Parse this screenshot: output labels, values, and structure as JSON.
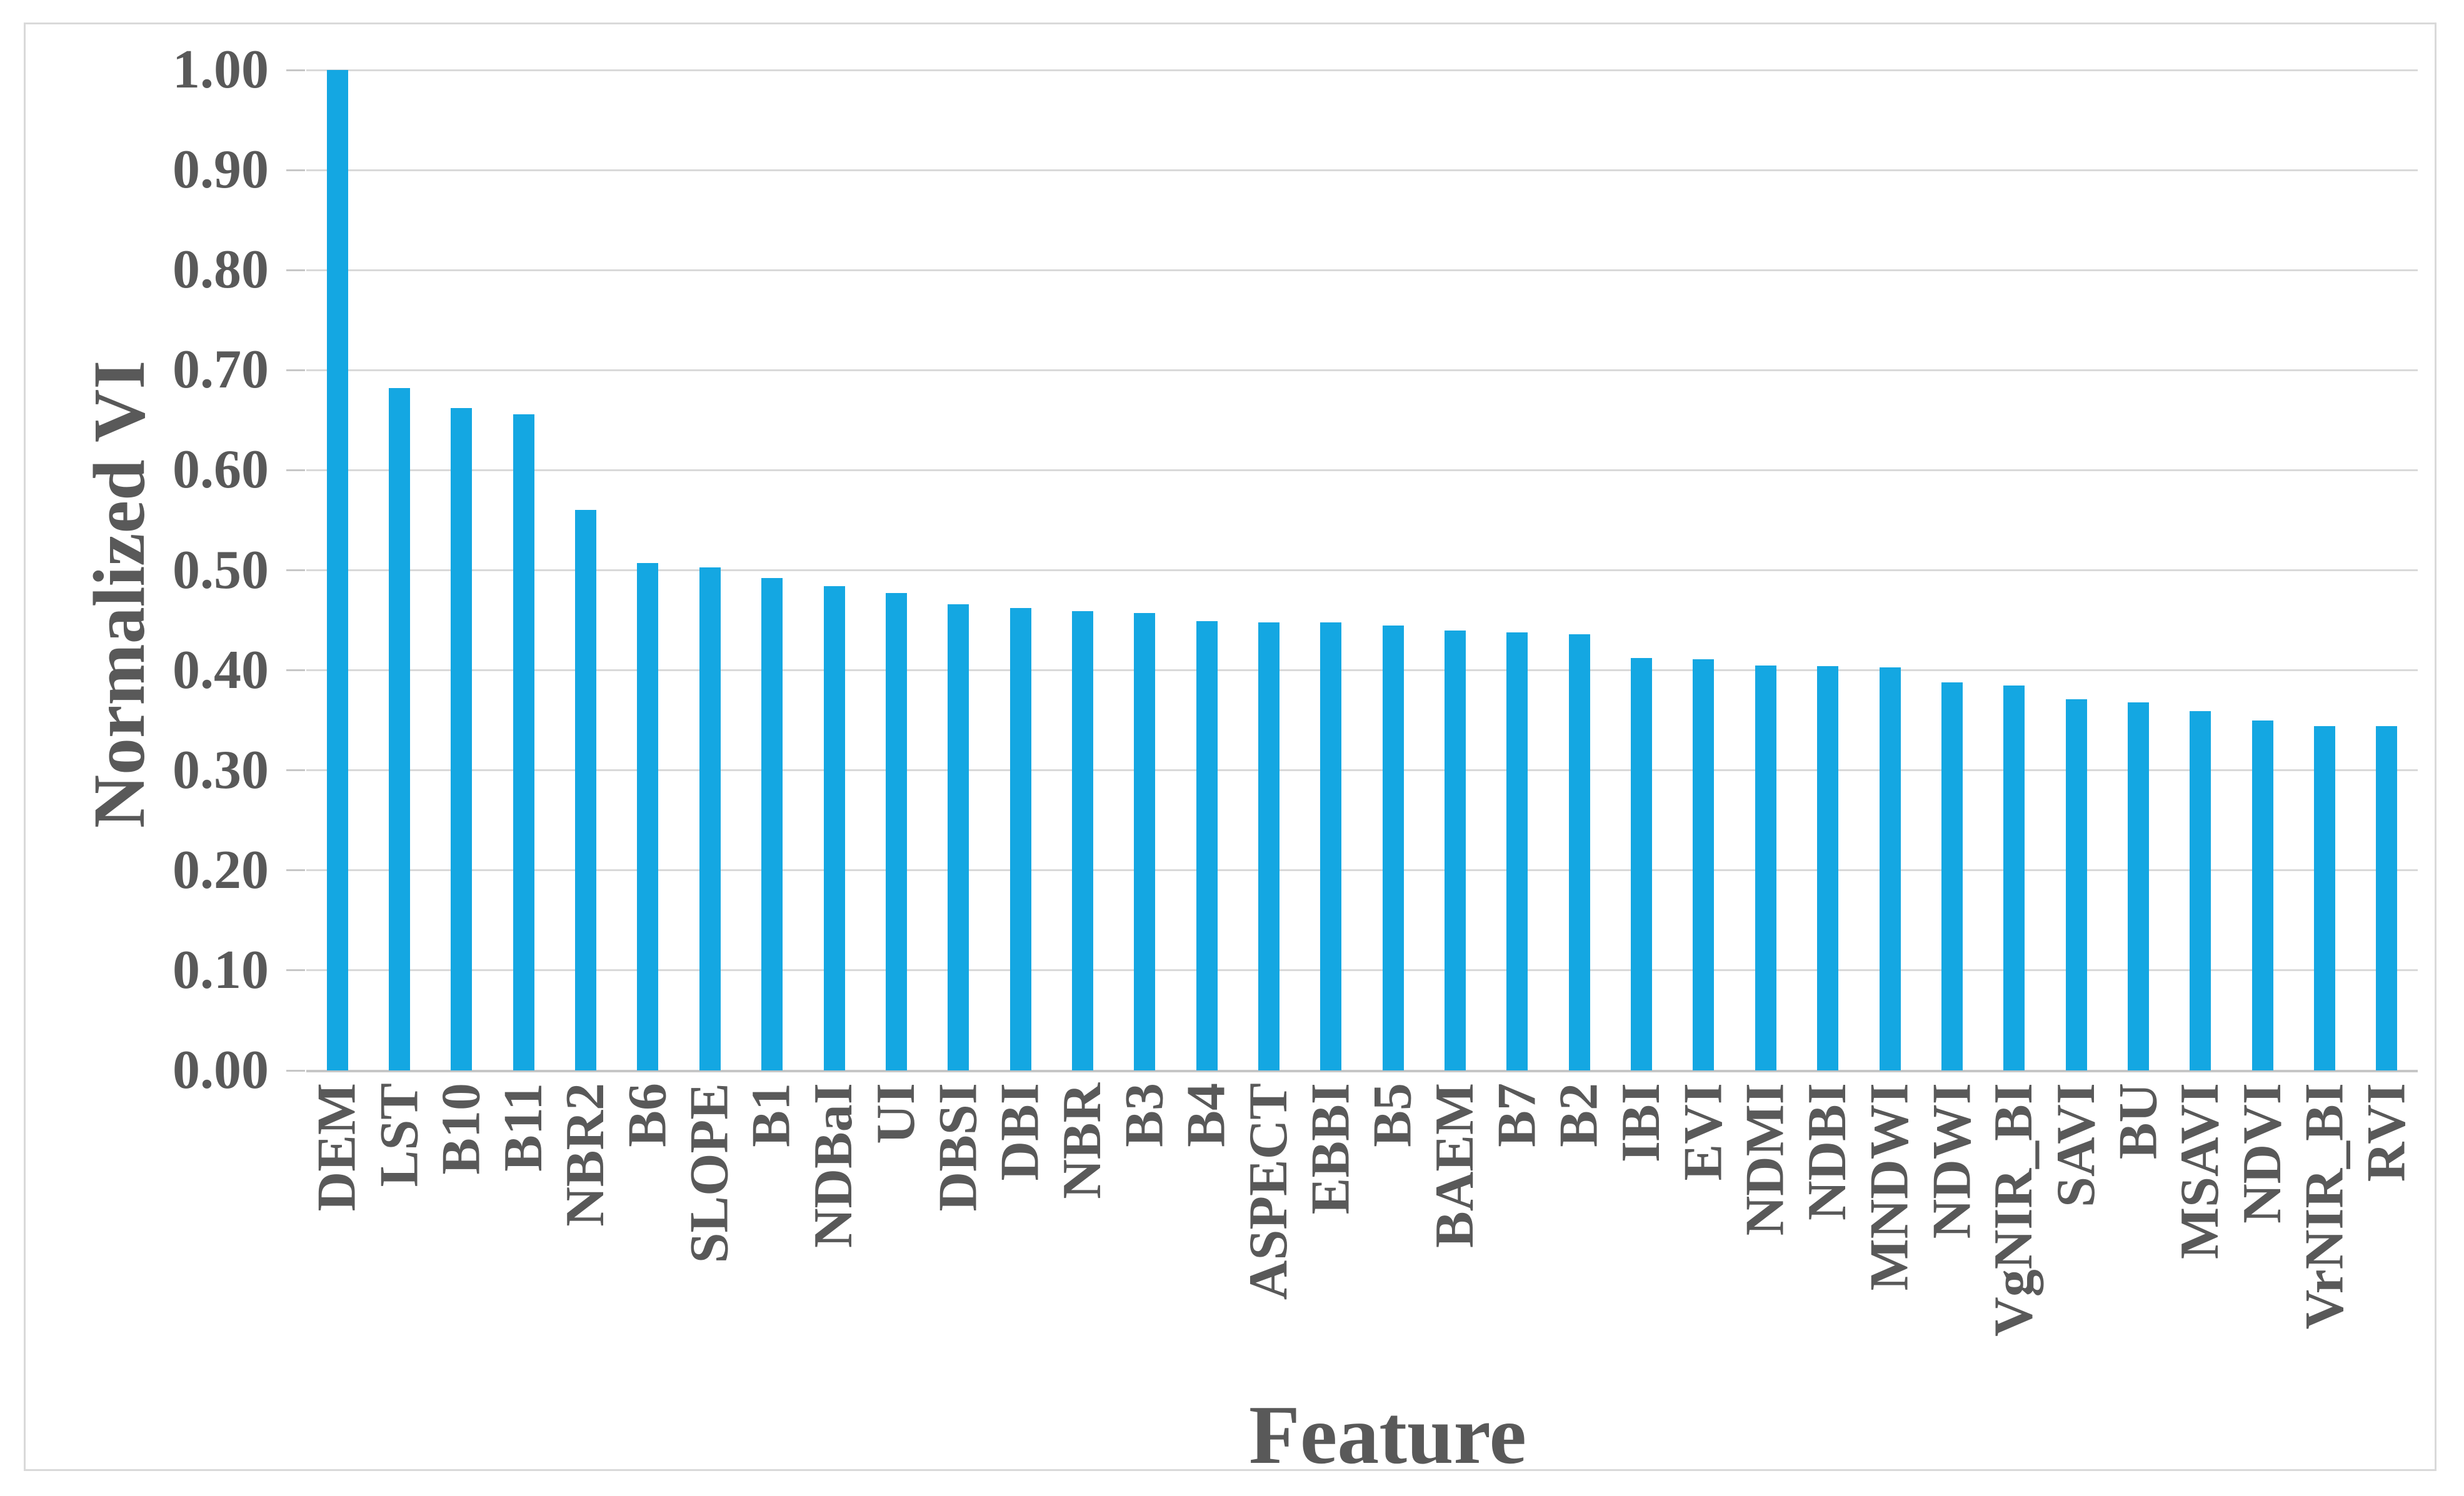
{
  "chart_data": {
    "type": "bar",
    "title": "",
    "xlabel": "Feature",
    "ylabel": "Normalized VI",
    "categories": [
      "DEM",
      "LST",
      "B10",
      "B11",
      "NBR2",
      "B6",
      "SLOPE",
      "B1",
      "NDBaI",
      "UI",
      "DBSI",
      "DBI",
      "NBR",
      "B3",
      "B4",
      "ASPECT",
      "EBBI",
      "B5",
      "BAEM",
      "B7",
      "B2",
      "IBI",
      "EVI",
      "NDMI",
      "NDBI",
      "MNDWI",
      "NDWI",
      "VgNIR_BI",
      "SAVI",
      "BU",
      "MSAVI",
      "NDVI",
      "VrNIR_BI",
      "RVI"
    ],
    "values": [
      1.0,
      0.682,
      0.662,
      0.656,
      0.56,
      0.507,
      0.503,
      0.492,
      0.484,
      0.477,
      0.466,
      0.462,
      0.459,
      0.457,
      0.449,
      0.448,
      0.448,
      0.445,
      0.44,
      0.438,
      0.436,
      0.412,
      0.411,
      0.405,
      0.404,
      0.403,
      0.388,
      0.385,
      0.371,
      0.368,
      0.359,
      0.35,
      0.344,
      0.344
    ],
    "ylim": [
      0.0,
      1.0
    ],
    "ytick_step": 0.1,
    "ytick_labels": [
      "0.00",
      "0.10",
      "0.20",
      "0.30",
      "0.40",
      "0.50",
      "0.60",
      "0.70",
      "0.80",
      "0.90",
      "1.00"
    ],
    "grid": "horizontal",
    "legend_position": "none",
    "bar_orientation": "vertical",
    "x_label_rotation_deg": 90,
    "colors": {
      "bar": "#14a7e2",
      "gridline": "#d9d9d9",
      "axis_line": "#c6c6c6",
      "text": "#595959",
      "frame_border": "#d9d9d9",
      "background": "#ffffff"
    }
  }
}
